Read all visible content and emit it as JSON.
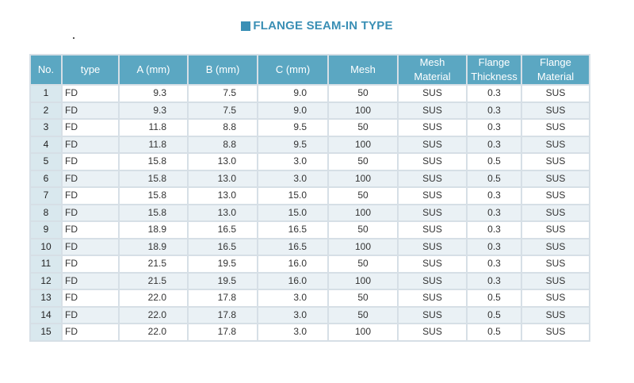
{
  "title": "FLANGE SEAM-IN TYPE",
  "dot": ".",
  "colors": {
    "accent": "#3a8fb5",
    "header_bg": "#5ba7c2",
    "index_bg": "#d9e8ee"
  },
  "headers": [
    [
      "No."
    ],
    [
      "type"
    ],
    [
      "A (mm)"
    ],
    [
      "B (mm)"
    ],
    [
      "C (mm)"
    ],
    [
      "Mesh"
    ],
    [
      "Mesh",
      "Material"
    ],
    [
      "Flange",
      "Thickness"
    ],
    [
      "Flange",
      "Material"
    ]
  ],
  "rows": [
    [
      "1",
      "FD",
      "9.3",
      "7.5",
      "9.0",
      "50",
      "SUS",
      "0.3",
      "SUS"
    ],
    [
      "2",
      "FD",
      "9.3",
      "7.5",
      "9.0",
      "100",
      "SUS",
      "0.3",
      "SUS"
    ],
    [
      "3",
      "FD",
      "11.8",
      "8.8",
      "9.5",
      "50",
      "SUS",
      "0.3",
      "SUS"
    ],
    [
      "4",
      "FD",
      "11.8",
      "8.8",
      "9.5",
      "100",
      "SUS",
      "0.3",
      "SUS"
    ],
    [
      "5",
      "FD",
      "15.8",
      "13.0",
      "3.0",
      "50",
      "SUS",
      "0.5",
      "SUS"
    ],
    [
      "6",
      "FD",
      "15.8",
      "13.0",
      "3.0",
      "100",
      "SUS",
      "0.5",
      "SUS"
    ],
    [
      "7",
      "FD",
      "15.8",
      "13.0",
      "15.0",
      "50",
      "SUS",
      "0.3",
      "SUS"
    ],
    [
      "8",
      "FD",
      "15.8",
      "13.0",
      "15.0",
      "100",
      "SUS",
      "0.3",
      "SUS"
    ],
    [
      "9",
      "FD",
      "18.9",
      "16.5",
      "16.5",
      "50",
      "SUS",
      "0.3",
      "SUS"
    ],
    [
      "10",
      "FD",
      "18.9",
      "16.5",
      "16.5",
      "100",
      "SUS",
      "0.3",
      "SUS"
    ],
    [
      "11",
      "FD",
      "21.5",
      "19.5",
      "16.0",
      "50",
      "SUS",
      "0.3",
      "SUS"
    ],
    [
      "12",
      "FD",
      "21.5",
      "19.5",
      "16.0",
      "100",
      "SUS",
      "0.3",
      "SUS"
    ],
    [
      "13",
      "FD",
      "22.0",
      "17.8",
      "3.0",
      "50",
      "SUS",
      "0.5",
      "SUS"
    ],
    [
      "14",
      "FD",
      "22.0",
      "17.8",
      "3.0",
      "50",
      "SUS",
      "0.5",
      "SUS"
    ],
    [
      "15",
      "FD",
      "22.0",
      "17.8",
      "3.0",
      "100",
      "SUS",
      "0.5",
      "SUS"
    ]
  ]
}
